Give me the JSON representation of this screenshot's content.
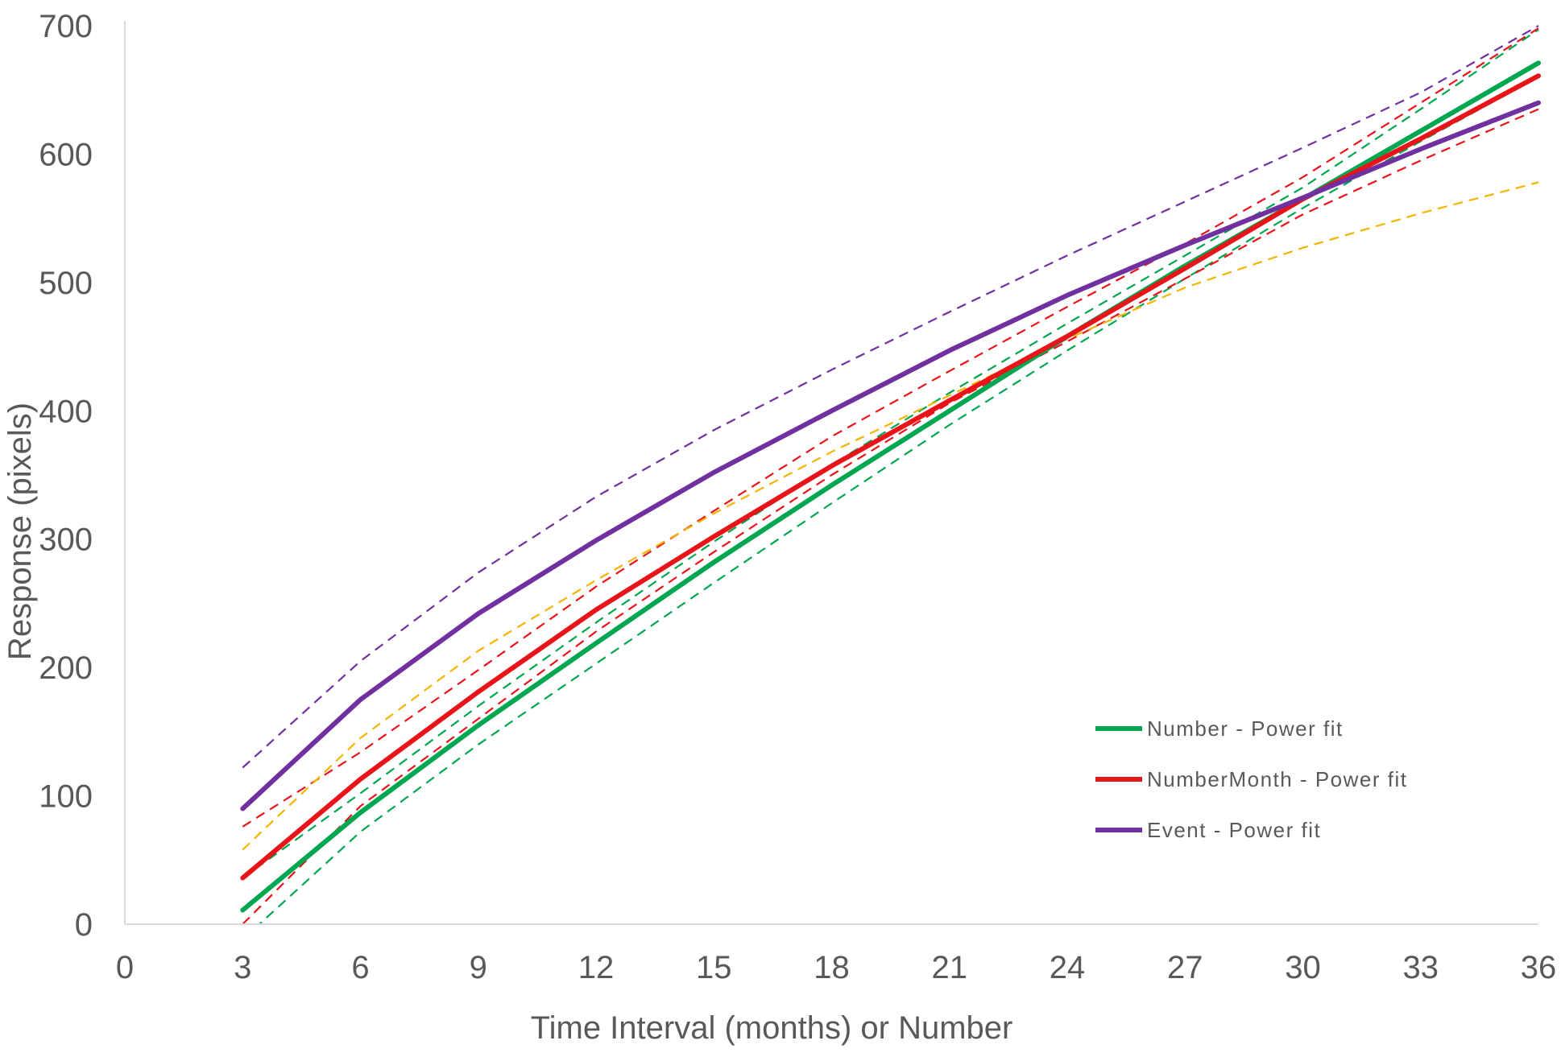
{
  "chart_data": {
    "type": "line",
    "title": "",
    "xlabel": "Time Interval (months) or Number",
    "ylabel": "Response (pixels)",
    "xlim": [
      0,
      36
    ],
    "ylim": [
      0,
      700
    ],
    "x_ticks": [
      0,
      3,
      6,
      9,
      12,
      15,
      18,
      21,
      24,
      27,
      30,
      33,
      36
    ],
    "y_ticks": [
      0,
      100,
      200,
      300,
      400,
      500,
      600,
      700
    ],
    "grid": false,
    "legend_position": "lower-right",
    "x": [
      3,
      6,
      9,
      12,
      15,
      18,
      21,
      24,
      27,
      30,
      33,
      36
    ],
    "series": [
      {
        "name": "Number - Power fit",
        "color": "#00A650",
        "style": "solid",
        "values": [
          11,
          87,
          155,
          219,
          282,
          342,
          400,
          458,
          513,
          565,
          618,
          671
        ]
      },
      {
        "name": "NumberMonth - Power fit",
        "color": "#E8141A",
        "style": "solid",
        "values": [
          36,
          113,
          181,
          245,
          302,
          357,
          408,
          458,
          511,
          565,
          612,
          661
        ]
      },
      {
        "name": "Event - Power fit",
        "color": "#7030A0",
        "style": "solid",
        "values": [
          90,
          175,
          242,
          299,
          352,
          400,
          447,
          490,
          529,
          566,
          604,
          640
        ]
      },
      {
        "color": "#00A650",
        "style": "dashed",
        "values": [
          -12,
          72,
          140,
          203,
          266,
          328,
          389,
          447,
          503,
          558,
          610,
          660
        ]
      },
      {
        "color": "#00A650",
        "style": "dashed",
        "values": [
          36,
          102,
          170,
          235,
          298,
          358,
          414,
          468,
          521,
          574,
          635,
          697
        ]
      },
      {
        "color": "#E8141A",
        "style": "dashed",
        "values": [
          0,
          92,
          160,
          228,
          290,
          350,
          406,
          454,
          503,
          553,
          595,
          635
        ]
      },
      {
        "color": "#E8141A",
        "style": "dashed",
        "values": [
          76,
          134,
          198,
          263,
          322,
          380,
          431,
          481,
          530,
          582,
          640,
          698
        ]
      },
      {
        "color": "#7030A0",
        "style": "dashed",
        "values": [
          122,
          205,
          274,
          333,
          385,
          432,
          477,
          521,
          563,
          605,
          648,
          700
        ]
      },
      {
        "color": "#F4B400",
        "style": "dashed",
        "values": [
          58,
          145,
          213,
          268,
          320,
          368,
          412,
          456,
          496,
          527,
          554,
          578
        ]
      }
    ]
  }
}
